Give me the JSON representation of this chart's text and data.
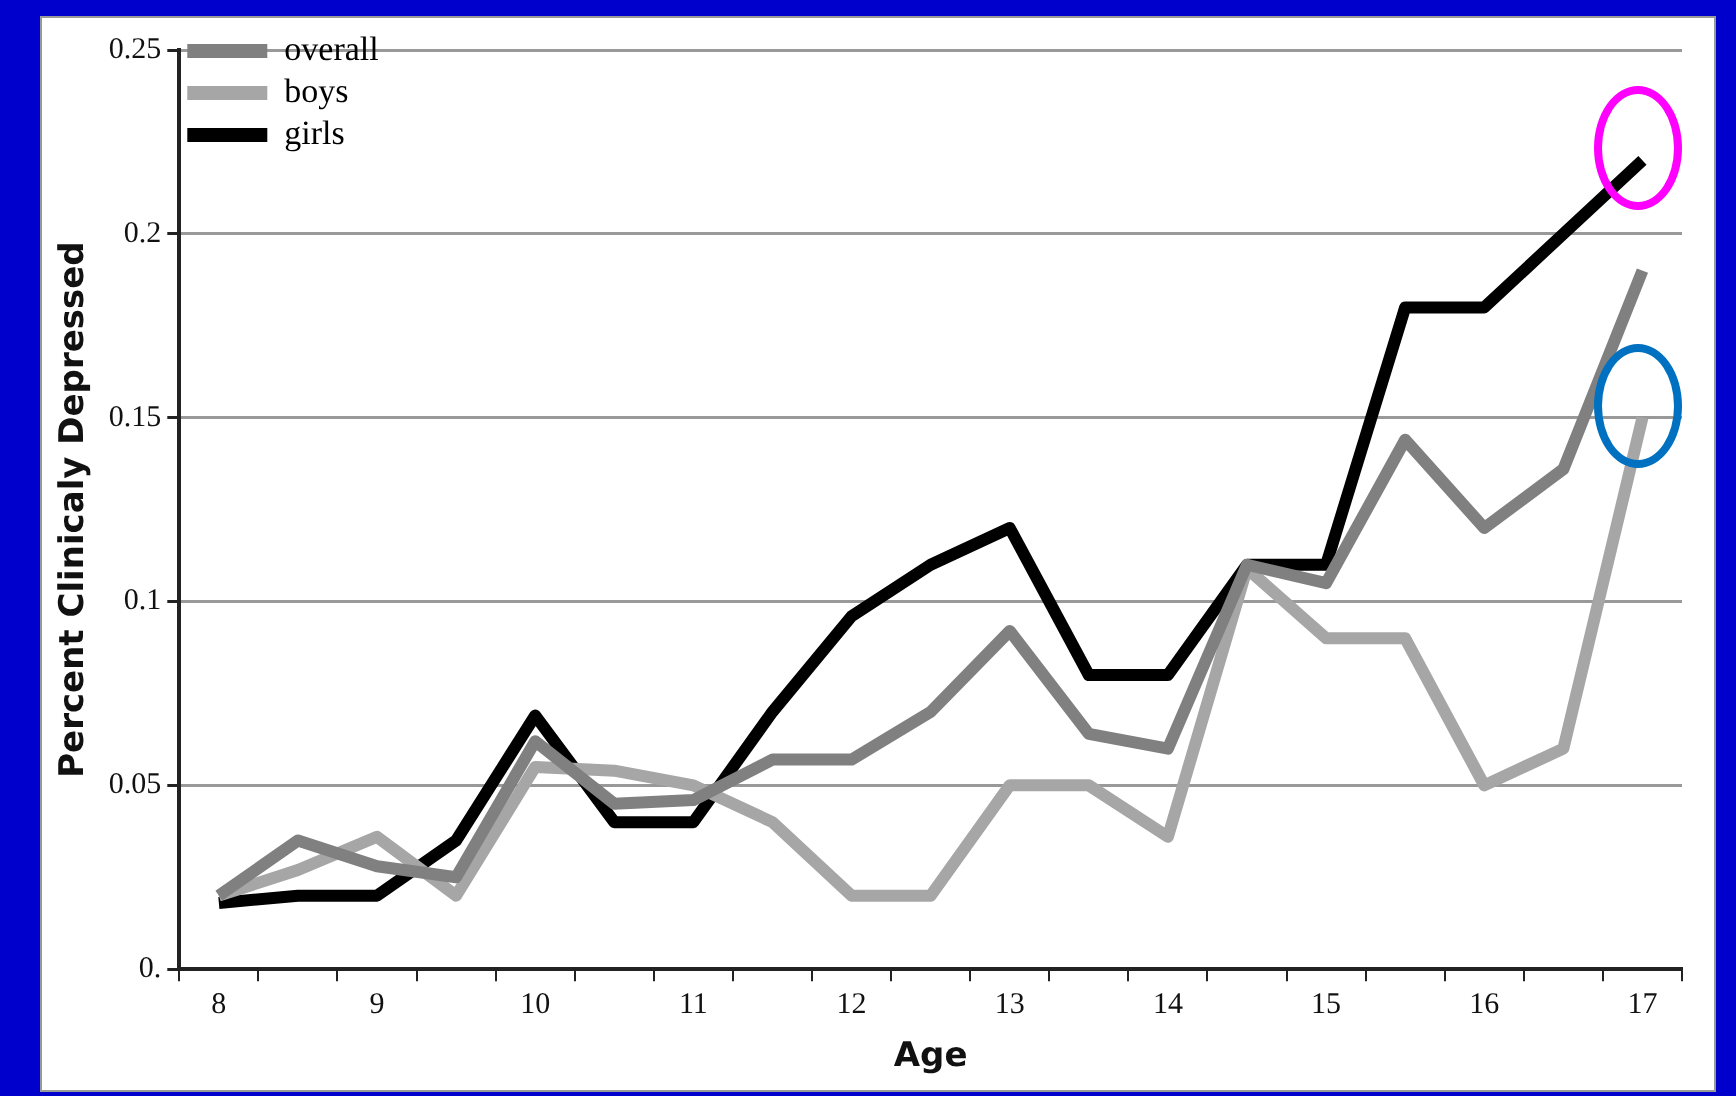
{
  "chart_data": {
    "type": "line",
    "xlabel": "Age",
    "ylabel": "Percent Clinicaly Depressed",
    "categories": [
      "8",
      null,
      "9",
      null,
      "10",
      null,
      "11",
      null,
      "12",
      null,
      "13",
      null,
      "14",
      null,
      "15",
      null,
      "16",
      null,
      "17"
    ],
    "series": [
      {
        "name": "overall",
        "color": "#808080",
        "values": [
          0.02,
          0.035,
          0.028,
          0.025,
          0.062,
          0.045,
          0.046,
          0.057,
          0.057,
          0.07,
          0.092,
          0.064,
          0.06,
          0.11,
          0.105,
          0.144,
          0.12,
          0.136,
          0.19
        ]
      },
      {
        "name": "boys",
        "color": "#a6a6a6",
        "values": [
          0.02,
          0.027,
          0.036,
          0.02,
          0.055,
          0.054,
          0.05,
          0.04,
          0.02,
          0.02,
          0.05,
          0.05,
          0.036,
          0.109,
          0.09,
          0.09,
          0.05,
          0.06,
          0.15
        ]
      },
      {
        "name": "girls",
        "color": "#000000",
        "values": [
          0.018,
          0.02,
          0.02,
          0.035,
          0.069,
          0.04,
          0.04,
          0.07,
          0.096,
          0.11,
          0.12,
          0.08,
          0.08,
          0.11,
          0.11,
          0.18,
          0.18,
          0.2,
          0.22
        ]
      }
    ],
    "ylim": [
      0,
      0.25
    ],
    "yticks": [
      {
        "value": 0,
        "label": "0."
      },
      0.05,
      0.1,
      0.15,
      0.2,
      0.25
    ],
    "grid": "y",
    "legend": "top left",
    "marker": "none",
    "line_style": "solid"
  }
}
